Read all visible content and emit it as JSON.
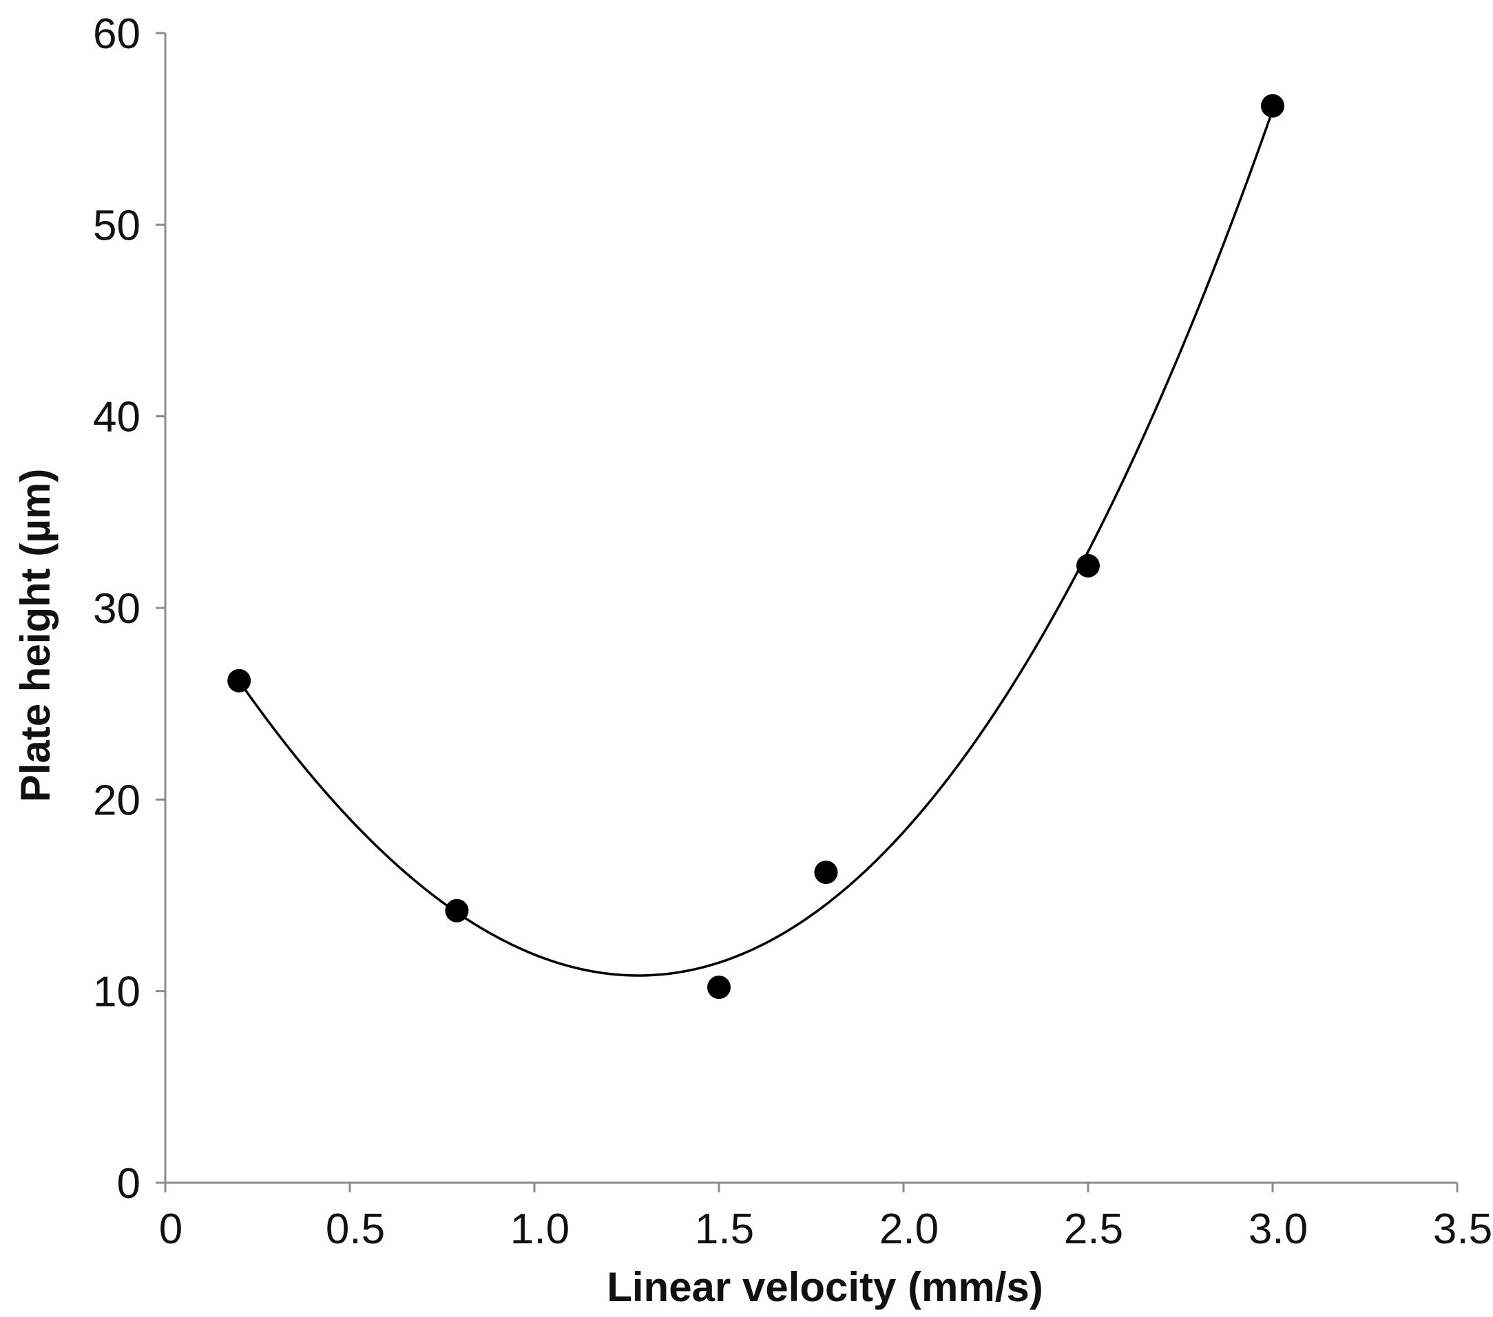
{
  "chart_data": {
    "type": "scatter",
    "title": "",
    "xlabel": "Linear velocity (mm/s)",
    "ylabel": "Plate height (µm)",
    "xlim": [
      0,
      3.5
    ],
    "ylim": [
      0,
      60
    ],
    "x_ticks": [
      0,
      0.5,
      1.0,
      1.5,
      2.0,
      2.5,
      3.0,
      3.5
    ],
    "x_tick_labels": [
      "0",
      "0.5",
      "1.0",
      "1.5",
      "2.0",
      "2.5",
      "3.0",
      "3.5"
    ],
    "y_ticks": [
      0,
      10,
      20,
      30,
      40,
      50,
      60
    ],
    "y_tick_labels": [
      "0",
      "10",
      "20",
      "30",
      "40",
      "50",
      "60"
    ],
    "grid": false,
    "legend": "none",
    "marker_color": "#000000",
    "line_color": "#000000",
    "series": [
      {
        "x": [
          0.2,
          0.79,
          1.5,
          1.79,
          2.5,
          3.0
        ],
        "y": [
          26.2,
          14.2,
          10.2,
          16.2,
          32.2,
          56.2
        ]
      }
    ],
    "trendline": {
      "type": "polynomial-3",
      "x_range": [
        0.2,
        3.0
      ],
      "x": [
        0.2,
        0.79,
        1.5,
        1.79,
        2.5,
        3.0
      ],
      "y": [
        26.2,
        14.2,
        10.2,
        16.2,
        32.2,
        56.2
      ]
    }
  }
}
